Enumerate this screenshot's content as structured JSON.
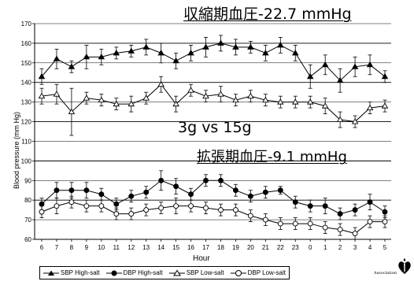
{
  "annotations": {
    "sbp_diff": "収縮期血圧-22.7 mmHg",
    "comparison": "3g vs 15g",
    "dbp_diff": "拡張期血圧-9.1 mmHg"
  },
  "logo": {
    "text": "Association",
    "icon": "heart-torch-icon"
  },
  "chart_data": {
    "type": "line",
    "xlabel": "Hour",
    "ylabel": "Blood pressure (mm Hg)",
    "x": [
      "6",
      "7",
      "8",
      "9",
      "10",
      "11",
      "12",
      "13",
      "14",
      "15",
      "16",
      "17",
      "18",
      "19",
      "20",
      "21",
      "22",
      "23",
      "0",
      "1",
      "2",
      "3",
      "4",
      "5"
    ],
    "ylim": [
      60,
      170
    ],
    "yticks": [
      60,
      70,
      80,
      90,
      100,
      110,
      120,
      130,
      140,
      150,
      160,
      170
    ],
    "grid": "horizontal",
    "legend_position": "bottom",
    "series": [
      {
        "name": "SBP High-salt",
        "marker": "filled-triangle",
        "color": "#000000",
        "values": [
          143,
          152,
          148,
          153,
          153,
          155,
          156,
          158,
          155,
          151,
          155,
          158,
          160,
          158,
          158,
          155,
          159,
          155,
          143,
          149,
          141,
          148,
          149,
          143
        ],
        "errors": [
          4,
          5,
          3,
          6,
          4,
          3,
          3,
          4,
          5,
          4,
          4,
          5,
          4,
          4,
          3,
          4,
          4,
          4,
          6,
          5,
          6,
          5,
          5,
          3
        ]
      },
      {
        "name": "DBP High-salt",
        "marker": "filled-circle",
        "color": "#000000",
        "values": [
          78,
          85,
          85,
          85,
          83,
          78,
          82,
          84,
          90,
          87,
          83,
          90,
          90,
          85,
          82,
          84,
          85,
          79,
          77,
          77,
          73,
          75,
          79,
          74
        ],
        "errors": [
          3,
          4,
          4,
          4,
          3,
          3,
          3,
          3,
          5,
          4,
          3,
          3,
          3,
          3,
          3,
          3,
          2,
          3,
          3,
          4,
          3,
          3,
          4,
          3
        ]
      },
      {
        "name": "SBP Low-salt",
        "marker": "open-triangle",
        "color": "#000000",
        "values": [
          133,
          134,
          125,
          132,
          131,
          129,
          129,
          132,
          139,
          129,
          136,
          133,
          134,
          131,
          133,
          131,
          130,
          130,
          130,
          128,
          121,
          120,
          127,
          128
        ],
        "errors": [
          4,
          5,
          12,
          3,
          3,
          3,
          4,
          3,
          4,
          4,
          3,
          3,
          4,
          3,
          3,
          3,
          3,
          3,
          3,
          4,
          4,
          3,
          3,
          3
        ]
      },
      {
        "name": "DBP Low-salt",
        "marker": "open-circle",
        "color": "#000000",
        "values": [
          74,
          77,
          79,
          77,
          77,
          73,
          73,
          75,
          76,
          77,
          77,
          76,
          75,
          75,
          72,
          70,
          68,
          68,
          68,
          66,
          65,
          63,
          69,
          69
        ],
        "errors": [
          3,
          4,
          3,
          3,
          3,
          3,
          3,
          3,
          3,
          4,
          3,
          3,
          3,
          3,
          3,
          3,
          3,
          3,
          3,
          3,
          3,
          3,
          3,
          3
        ]
      }
    ]
  }
}
